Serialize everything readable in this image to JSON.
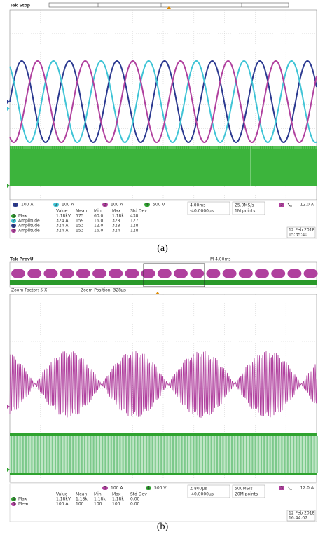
{
  "panels": [
    {
      "status": "Tek Stop",
      "channels": [
        {
          "number": "1",
          "scale": "100 A"
        },
        {
          "number": "2",
          "scale": "100 A"
        },
        {
          "number": "3",
          "scale": "100 A"
        },
        {
          "number": "4",
          "scale": "500 V"
        }
      ],
      "measurements": {
        "headers": [
          "Value",
          "Mean",
          "Min",
          "Max",
          "Std Dev"
        ],
        "rows": [
          {
            "channel": "4",
            "name": "Max",
            "cells": [
              "1.18kV",
              "575",
              "60.0",
              "1.18k",
              "438"
            ]
          },
          {
            "channel": "2",
            "name": "Amplitude",
            "cells": [
              "324 A",
              "159",
              "16.0",
              "328",
              "127"
            ]
          },
          {
            "channel": "1",
            "name": "Amplitude",
            "cells": [
              "324 A",
              "153",
              "12.0",
              "328",
              "128"
            ]
          },
          {
            "channel": "3",
            "name": "Amplitude",
            "cells": [
              "324 A",
              "153",
              "16.0",
              "324",
              "128"
            ]
          }
        ]
      },
      "timebase": "4.00ms",
      "trigger_position": "-40.0000µs",
      "sample_rate": "25.0MS/s",
      "record_length": "1M points",
      "trigger_channel": "3",
      "trigger_level": "12.0 A",
      "date": "12 Feb 2018",
      "time": "15:35:40",
      "caption": "(a)"
    },
    {
      "status": "Tek PrevU",
      "horizontal": "M 4.00ms",
      "zoom_factor": "Zoom Factor: 5 X",
      "zoom_position": "Zoom Position: 328µs",
      "channels": [
        {
          "number": "3",
          "scale": "100 A"
        },
        {
          "number": "4",
          "scale": "500 V"
        }
      ],
      "measurements": {
        "headers": [
          "Value",
          "Mean",
          "Min",
          "Max",
          "Std Dev"
        ],
        "rows": [
          {
            "channel": "4",
            "name": "Max",
            "cells": [
              "1.18kV",
              "1.18k",
              "1.18k",
              "1.18k",
              "0.00"
            ]
          },
          {
            "channel": "3",
            "name": "Mean",
            "cells": [
              "100 A",
              "100",
              "100",
              "100",
              "0.00"
            ]
          }
        ]
      },
      "timebase": "Z 800µs",
      "trigger_position": "-40.0000µs",
      "sample_rate": "500MS/s",
      "record_length": "20M points",
      "trigger_channel": "3",
      "trigger_level": "12.0 A",
      "date": "12 Feb 2018",
      "time": "16:44:07",
      "caption": "(b)"
    }
  ]
}
